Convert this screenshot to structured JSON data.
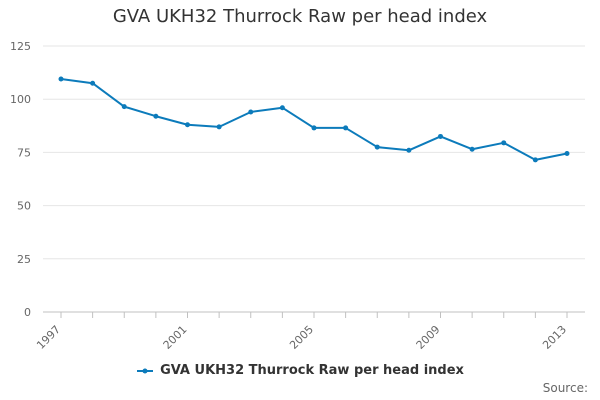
{
  "chart_data": {
    "type": "line",
    "title": "GVA UKH32 Thurrock Raw per head index",
    "xlabel": "",
    "ylabel": "",
    "x": [
      1997,
      1998,
      1999,
      2000,
      2001,
      2002,
      2003,
      2004,
      2005,
      2006,
      2007,
      2008,
      2009,
      2010,
      2011,
      2012,
      2013
    ],
    "series": [
      {
        "name": "GVA UKH32 Thurrock Raw per head index",
        "values": [
          109.5,
          107.5,
          96.5,
          92,
          88,
          87,
          94,
          96,
          86.5,
          86.5,
          77.5,
          76,
          82.5,
          76.5,
          79.5,
          71.5,
          74.5
        ],
        "color": "#0c7bbb"
      }
    ],
    "xticks": [
      "1997",
      "2001",
      "2005",
      "2009",
      "2013"
    ],
    "yticks": [
      "0",
      "25",
      "50",
      "75",
      "100",
      "125"
    ],
    "xlim": [
      1997,
      2013
    ],
    "ylim": [
      0,
      125
    ],
    "grid": true,
    "legend_position": "bottom-center"
  },
  "source_label": "Source:"
}
